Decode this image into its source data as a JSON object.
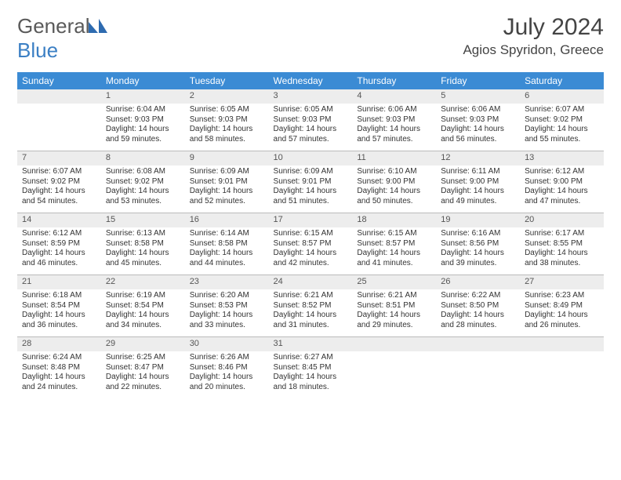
{
  "brand": {
    "part1": "General",
    "part2": "Blue"
  },
  "title": "July 2024",
  "location": "Agios Spyridon, Greece",
  "header": {
    "bg": "#3b8bd4",
    "fg": "#ffffff"
  },
  "daynum_bg": "#ededed",
  "days": [
    "Sunday",
    "Monday",
    "Tuesday",
    "Wednesday",
    "Thursday",
    "Friday",
    "Saturday"
  ],
  "weeks": [
    {
      "nums": [
        "",
        "1",
        "2",
        "3",
        "4",
        "5",
        "6"
      ],
      "cells": [
        null,
        {
          "sunrise": "6:04 AM",
          "sunset": "9:03 PM",
          "daylight": "14 hours and 59 minutes."
        },
        {
          "sunrise": "6:05 AM",
          "sunset": "9:03 PM",
          "daylight": "14 hours and 58 minutes."
        },
        {
          "sunrise": "6:05 AM",
          "sunset": "9:03 PM",
          "daylight": "14 hours and 57 minutes."
        },
        {
          "sunrise": "6:06 AM",
          "sunset": "9:03 PM",
          "daylight": "14 hours and 57 minutes."
        },
        {
          "sunrise": "6:06 AM",
          "sunset": "9:03 PM",
          "daylight": "14 hours and 56 minutes."
        },
        {
          "sunrise": "6:07 AM",
          "sunset": "9:02 PM",
          "daylight": "14 hours and 55 minutes."
        }
      ]
    },
    {
      "nums": [
        "7",
        "8",
        "9",
        "10",
        "11",
        "12",
        "13"
      ],
      "cells": [
        {
          "sunrise": "6:07 AM",
          "sunset": "9:02 PM",
          "daylight": "14 hours and 54 minutes."
        },
        {
          "sunrise": "6:08 AM",
          "sunset": "9:02 PM",
          "daylight": "14 hours and 53 minutes."
        },
        {
          "sunrise": "6:09 AM",
          "sunset": "9:01 PM",
          "daylight": "14 hours and 52 minutes."
        },
        {
          "sunrise": "6:09 AM",
          "sunset": "9:01 PM",
          "daylight": "14 hours and 51 minutes."
        },
        {
          "sunrise": "6:10 AM",
          "sunset": "9:00 PM",
          "daylight": "14 hours and 50 minutes."
        },
        {
          "sunrise": "6:11 AM",
          "sunset": "9:00 PM",
          "daylight": "14 hours and 49 minutes."
        },
        {
          "sunrise": "6:12 AM",
          "sunset": "9:00 PM",
          "daylight": "14 hours and 47 minutes."
        }
      ]
    },
    {
      "nums": [
        "14",
        "15",
        "16",
        "17",
        "18",
        "19",
        "20"
      ],
      "cells": [
        {
          "sunrise": "6:12 AM",
          "sunset": "8:59 PM",
          "daylight": "14 hours and 46 minutes."
        },
        {
          "sunrise": "6:13 AM",
          "sunset": "8:58 PM",
          "daylight": "14 hours and 45 minutes."
        },
        {
          "sunrise": "6:14 AM",
          "sunset": "8:58 PM",
          "daylight": "14 hours and 44 minutes."
        },
        {
          "sunrise": "6:15 AM",
          "sunset": "8:57 PM",
          "daylight": "14 hours and 42 minutes."
        },
        {
          "sunrise": "6:15 AM",
          "sunset": "8:57 PM",
          "daylight": "14 hours and 41 minutes."
        },
        {
          "sunrise": "6:16 AM",
          "sunset": "8:56 PM",
          "daylight": "14 hours and 39 minutes."
        },
        {
          "sunrise": "6:17 AM",
          "sunset": "8:55 PM",
          "daylight": "14 hours and 38 minutes."
        }
      ]
    },
    {
      "nums": [
        "21",
        "22",
        "23",
        "24",
        "25",
        "26",
        "27"
      ],
      "cells": [
        {
          "sunrise": "6:18 AM",
          "sunset": "8:54 PM",
          "daylight": "14 hours and 36 minutes."
        },
        {
          "sunrise": "6:19 AM",
          "sunset": "8:54 PM",
          "daylight": "14 hours and 34 minutes."
        },
        {
          "sunrise": "6:20 AM",
          "sunset": "8:53 PM",
          "daylight": "14 hours and 33 minutes."
        },
        {
          "sunrise": "6:21 AM",
          "sunset": "8:52 PM",
          "daylight": "14 hours and 31 minutes."
        },
        {
          "sunrise": "6:21 AM",
          "sunset": "8:51 PM",
          "daylight": "14 hours and 29 minutes."
        },
        {
          "sunrise": "6:22 AM",
          "sunset": "8:50 PM",
          "daylight": "14 hours and 28 minutes."
        },
        {
          "sunrise": "6:23 AM",
          "sunset": "8:49 PM",
          "daylight": "14 hours and 26 minutes."
        }
      ]
    },
    {
      "nums": [
        "28",
        "29",
        "30",
        "31",
        "",
        "",
        ""
      ],
      "cells": [
        {
          "sunrise": "6:24 AM",
          "sunset": "8:48 PM",
          "daylight": "14 hours and 24 minutes."
        },
        {
          "sunrise": "6:25 AM",
          "sunset": "8:47 PM",
          "daylight": "14 hours and 22 minutes."
        },
        {
          "sunrise": "6:26 AM",
          "sunset": "8:46 PM",
          "daylight": "14 hours and 20 minutes."
        },
        {
          "sunrise": "6:27 AM",
          "sunset": "8:45 PM",
          "daylight": "14 hours and 18 minutes."
        },
        null,
        null,
        null
      ]
    }
  ]
}
